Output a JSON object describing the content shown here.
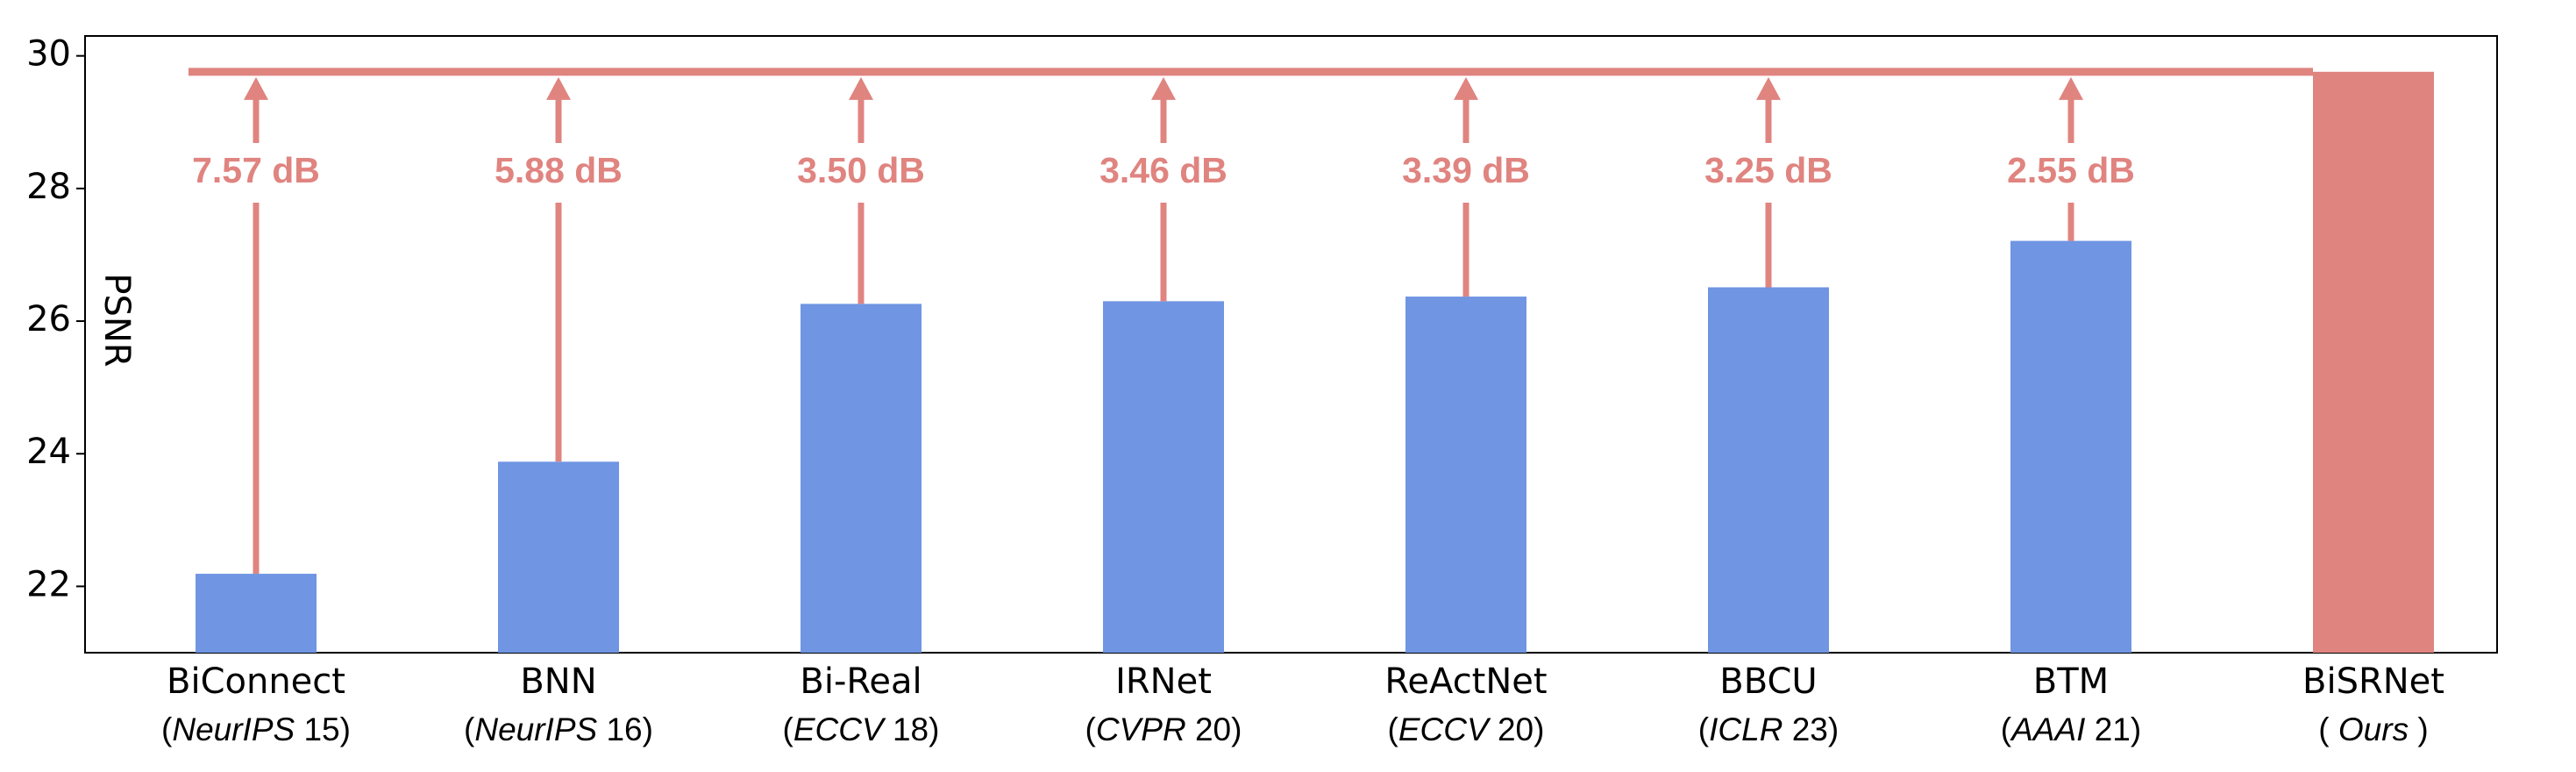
{
  "chart_data": {
    "type": "bar",
    "y_label": "PSNR",
    "categories": [
      "BiConnect",
      "BNN",
      "Bi-Real",
      "IRNet",
      "ReActNet",
      "BBCU",
      "BTM",
      "BiSRNet"
    ],
    "sublabels": [
      [
        "(",
        "NeurIPS",
        " 15)"
      ],
      [
        "(",
        "NeurIPS",
        " 16)"
      ],
      [
        "(",
        "ECCV",
        " 18)"
      ],
      [
        "(",
        "CVPR",
        " 20)"
      ],
      [
        "(",
        "ECCV",
        " 20)"
      ],
      [
        "(",
        "ICLR",
        " 23)"
      ],
      [
        "(",
        "AAAI",
        " 21)"
      ],
      [
        "( ",
        "Ours",
        " )"
      ]
    ],
    "values": [
      22.19,
      23.88,
      26.26,
      26.3,
      26.37,
      26.51,
      27.21,
      29.76
    ],
    "colors": [
      "#6f95e3",
      "#6f95e3",
      "#6f95e3",
      "#6f95e3",
      "#6f95e3",
      "#6f95e3",
      "#6f95e3",
      "#e08480"
    ],
    "annotation_color": "#e08480",
    "annotations": [
      "7.57 dB",
      "5.88 dB",
      "3.50 dB",
      "3.46 dB",
      "3.39 dB",
      "3.25 dB",
      "2.55 dB"
    ],
    "ylim": [
      21,
      30.3
    ],
    "yticks": [
      22,
      24,
      26,
      28,
      30
    ]
  }
}
